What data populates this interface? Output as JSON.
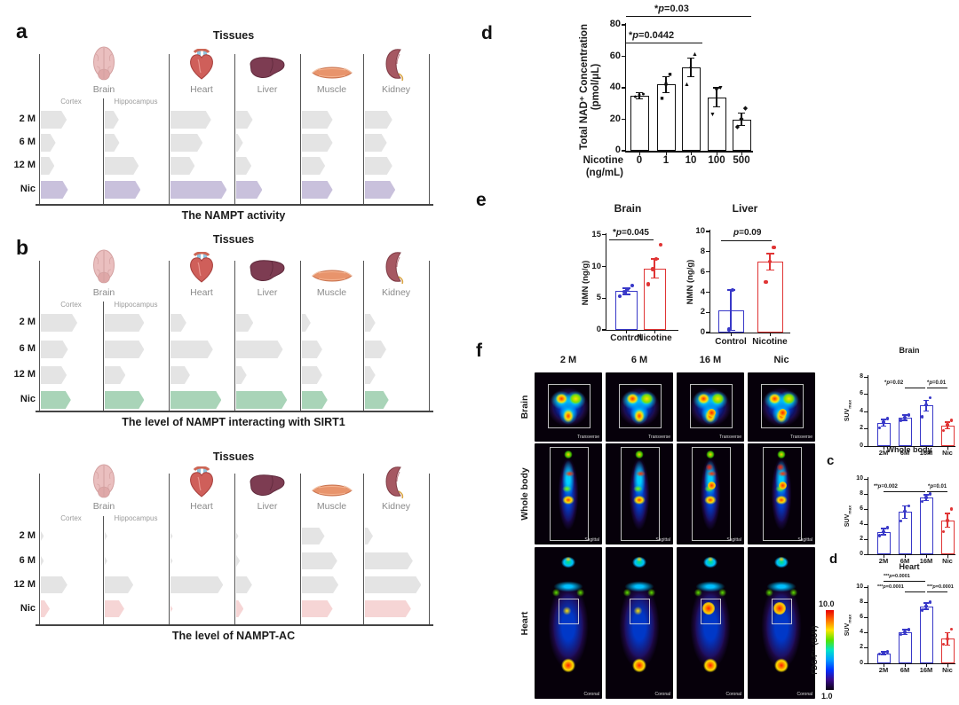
{
  "panel_labels": {
    "a": "a",
    "b": "b",
    "c": "c",
    "d": "d",
    "e": "e",
    "f": "f"
  },
  "tissue_rows": [
    "2 M",
    "6 M",
    "12 M",
    "Nic"
  ],
  "chart_data": [
    {
      "id": "nampt_activity",
      "type": "bar",
      "orientation": "horizontal",
      "title": "Tissues",
      "caption": "The NAMPT activity",
      "row_labels": [
        "2 M",
        "6 M",
        "12 M",
        "Nic"
      ],
      "bar_color": "#e4e4e4",
      "highlight_row": "Nic",
      "highlight_color": "#c9c1dc",
      "sections": [
        {
          "name": "Brain",
          "icon": "brain",
          "columns": [
            {
              "label": "Cortex",
              "values_pct": [
                45,
                26,
                24,
                47
              ]
            },
            {
              "label": "Hippocampus",
              "values_pct": [
                24,
                25,
                57,
                60
              ]
            }
          ]
        },
        {
          "name": "Heart",
          "icon": "heart",
          "columns": [
            {
              "values_pct": [
                68,
                54,
                41,
                94
              ]
            }
          ]
        },
        {
          "name": "Liver",
          "icon": "liver",
          "columns": [
            {
              "values_pct": [
                28,
                12,
                26,
                44
              ]
            }
          ]
        },
        {
          "name": "Muscle",
          "icon": "muscle",
          "columns": [
            {
              "values_pct": [
                54,
                54,
                41,
                54
              ]
            }
          ]
        },
        {
          "name": "Kidney",
          "icon": "kidney",
          "columns": [
            {
              "values_pct": [
                46,
                37,
                46,
                51
              ]
            }
          ]
        }
      ]
    },
    {
      "id": "nampt_sirt1",
      "type": "bar",
      "orientation": "horizontal",
      "title": "Tissues",
      "caption": "The level of NAMPT interacting with SIRT1",
      "row_labels": [
        "2 M",
        "6 M",
        "12 M",
        "Nic"
      ],
      "bar_color": "#e4e4e4",
      "highlight_row": "Nic",
      "highlight_color": "#a9d4b8",
      "sections": [
        {
          "name": "Brain",
          "icon": "brain",
          "columns": [
            {
              "label": "Cortex",
              "values_pct": [
                63,
                47,
                45,
                52
              ]
            },
            {
              "label": "Hippocampus",
              "values_pct": [
                66,
                66,
                35,
                66
              ]
            }
          ]
        },
        {
          "name": "Heart",
          "icon": "heart",
          "columns": [
            {
              "values_pct": [
                27,
                71,
                33,
                85
              ]
            }
          ]
        },
        {
          "name": "Liver",
          "icon": "liver",
          "columns": [
            {
              "values_pct": [
                29,
                78,
                18,
                85
              ]
            }
          ]
        },
        {
          "name": "Muscle",
          "icon": "muscle",
          "columns": [
            {
              "values_pct": [
                16,
                36,
                36,
                45
              ]
            }
          ]
        },
        {
          "name": "Kidney",
          "icon": "kidney",
          "columns": [
            {
              "values_pct": [
                18,
                36,
                18,
                40
              ]
            }
          ]
        }
      ]
    },
    {
      "id": "nampt_ac",
      "type": "bar",
      "orientation": "horizontal",
      "title": "Tissues",
      "caption": "The level of NAMPT-AC",
      "row_labels": [
        "2 M",
        "6 M",
        "12 M",
        "Nic"
      ],
      "bar_color": "#e4e4e4",
      "highlight_row": "Nic",
      "highlight_color": "#f6d5d5",
      "sections": [
        {
          "name": "Brain",
          "icon": "brain",
          "columns": [
            {
              "label": "Cortex",
              "values_pct": [
                6,
                6,
                46,
                16
              ]
            },
            {
              "label": "Hippocampus",
              "values_pct": [
                5,
                5,
                48,
                33
              ]
            }
          ]
        },
        {
          "name": "Heart",
          "icon": "heart",
          "columns": [
            {
              "values_pct": [
                4,
                4,
                88,
                4
              ]
            }
          ]
        },
        {
          "name": "Liver",
          "icon": "liver",
          "columns": [
            {
              "values_pct": [
                4,
                7,
                27,
                13
              ]
            }
          ]
        },
        {
          "name": "Muscle",
          "icon": "muscle",
          "columns": [
            {
              "values_pct": [
                40,
                62,
                64,
                54
              ]
            }
          ]
        },
        {
          "name": "Kidney",
          "icon": "kidney",
          "columns": [
            {
              "values_pct": [
                14,
                80,
                94,
                77
              ]
            }
          ]
        }
      ]
    },
    {
      "id": "total_nad",
      "type": "bar",
      "ylabel": "Total NAD⁺ Concentration",
      "ylabel2": "(pmol/μL)",
      "xlabel": "Nicotine",
      "xlabel2": "(ng/mL)",
      "categories": [
        "0",
        "1",
        "10",
        "100",
        "500"
      ],
      "values": [
        35,
        42,
        53,
        34,
        20
      ],
      "errors": [
        2,
        5,
        6,
        6,
        4
      ],
      "points": [
        [
          34,
          35,
          36
        ],
        [
          33,
          42,
          48
        ],
        [
          42,
          53,
          61
        ],
        [
          23,
          38,
          40
        ],
        [
          15,
          20,
          27
        ]
      ],
      "markers": [
        "circle",
        "square",
        "triangle-up",
        "triangle-down",
        "diamond"
      ],
      "yticks": [
        0,
        20,
        40,
        60,
        80
      ],
      "ylim": [
        0,
        80
      ],
      "bar_fill": "#ffffff",
      "bar_border": "#111111",
      "significance": [
        {
          "label": "*p=0.0442",
          "from": 0,
          "to": 2
        },
        {
          "label": "*p=0.03",
          "from": 0,
          "to": 4
        }
      ]
    },
    {
      "id": "nmn_brain",
      "type": "bar",
      "title": "Brain",
      "ylabel": "NMN (ng/g)",
      "categories": [
        "Control",
        "Nicotine"
      ],
      "values": [
        6.1,
        9.7
      ],
      "errors": [
        0.5,
        1.5
      ],
      "points": [
        [
          5.3,
          6.0,
          6.4,
          7.0
        ],
        [
          7.2,
          9.6,
          11.2,
          13.4
        ]
      ],
      "colors": [
        "#3838c8",
        "#e03434"
      ],
      "yticks": [
        0,
        5,
        10,
        15
      ],
      "ylim": [
        0,
        15
      ],
      "significance": [
        {
          "label": "*p=0.045",
          "from": 0,
          "to": 1
        }
      ]
    },
    {
      "id": "nmn_liver",
      "type": "bar",
      "title": "Liver",
      "ylabel": "NMN (ng/g)",
      "categories": [
        "Control",
        "Nicotine"
      ],
      "values": [
        2.2,
        7.0
      ],
      "errors": [
        2.0,
        0.8
      ],
      "points": [
        [
          0.3,
          4.2
        ],
        [
          5.0,
          7.0,
          8.4
        ]
      ],
      "colors": [
        "#3838c8",
        "#e03434"
      ],
      "yticks": [
        0,
        2,
        4,
        6,
        8,
        10
      ],
      "ylim": [
        0,
        10
      ],
      "significance": [
        {
          "label": "p=0.09",
          "from": 0,
          "to": 1
        }
      ]
    },
    {
      "id": "suv_brain",
      "type": "bar",
      "title": "Brain",
      "ylabel_base": "SUV",
      "ylabel_sub": "max",
      "categories": [
        "2M",
        "6M",
        "16M",
        "Nic"
      ],
      "values": [
        2.7,
        3.3,
        4.7,
        2.4
      ],
      "errors": [
        0.4,
        0.3,
        0.6,
        0.4
      ],
      "points": [
        [
          2.1,
          2.8,
          3.2
        ],
        [
          3.0,
          3.3,
          3.6
        ],
        [
          3.4,
          4.8,
          5.6
        ],
        [
          1.8,
          2.5,
          3.0
        ]
      ],
      "colors": [
        "#3838c8",
        "#3838c8",
        "#3838c8",
        "#e03434"
      ],
      "yticks": [
        0,
        2,
        4,
        6,
        8
      ],
      "ylim": [
        0,
        8
      ],
      "significance": [
        {
          "label": "*p=0.02",
          "from": 1,
          "to": 2
        },
        {
          "label": "*p=0.01",
          "from": 2,
          "to": 3
        }
      ]
    },
    {
      "id": "suv_whole_body",
      "type": "bar",
      "title": "Whole body",
      "ylabel_base": "SUV",
      "ylabel_sub": "max",
      "categories": [
        "2M",
        "6M",
        "16M",
        "Nic"
      ],
      "values": [
        3.0,
        5.6,
        7.5,
        4.5
      ],
      "errors": [
        0.4,
        0.8,
        0.4,
        0.9
      ],
      "points": [
        [
          2.5,
          3.0,
          3.5
        ],
        [
          4.4,
          5.7,
          6.4
        ],
        [
          7.0,
          7.5,
          8.0
        ],
        [
          3.0,
          4.5,
          6.0
        ]
      ],
      "colors": [
        "#3838c8",
        "#3838c8",
        "#3838c8",
        "#e03434"
      ],
      "yticks": [
        0,
        2,
        4,
        6,
        8,
        10
      ],
      "ylim": [
        0,
        10
      ],
      "significance": [
        {
          "label": "**p=0.002",
          "from": 0,
          "to": 2
        },
        {
          "label": "*p=0.01",
          "from": 2,
          "to": 3
        }
      ]
    },
    {
      "id": "suv_heart",
      "type": "bar",
      "title": "Heart",
      "ylabel_base": "SUV",
      "ylabel_sub": "max",
      "categories": [
        "2M",
        "6M",
        "16M",
        "Nic"
      ],
      "values": [
        1.3,
        4.1,
        7.5,
        3.2
      ],
      "errors": [
        0.2,
        0.3,
        0.4,
        0.8
      ],
      "points": [
        [
          1.2,
          1.3,
          1.5
        ],
        [
          3.8,
          4.1,
          4.4
        ],
        [
          7.0,
          7.5,
          8.0
        ],
        [
          2.5,
          3.2,
          4.5
        ]
      ],
      "colors": [
        "#3838c8",
        "#3838c8",
        "#3838c8",
        "#e03434"
      ],
      "yticks": [
        0,
        2,
        4,
        6,
        8,
        10
      ],
      "ylim": [
        0,
        10
      ],
      "significance": [
        {
          "label": "***p=0.0001",
          "from": 0,
          "to": 2,
          "row": 0
        },
        {
          "label": "***p=0.0001",
          "from": 1,
          "to": 2,
          "row": 1
        },
        {
          "label": "***p=0.0001",
          "from": 2,
          "to": 3,
          "row": 1
        }
      ]
    }
  ],
  "pet": {
    "columns": [
      "2 M",
      "6 M",
      "16 M",
      "Nic"
    ],
    "rows": [
      {
        "label": "Brain",
        "plane": "Transverse"
      },
      {
        "label": "Whole body",
        "plane": "Sagittal"
      },
      {
        "label": "Heart",
        "plane": "Coronal"
      }
    ],
    "colorbar": {
      "label": "FDG-F¹⁸ (SUV)",
      "max": "10.0",
      "min": "1.0"
    }
  }
}
